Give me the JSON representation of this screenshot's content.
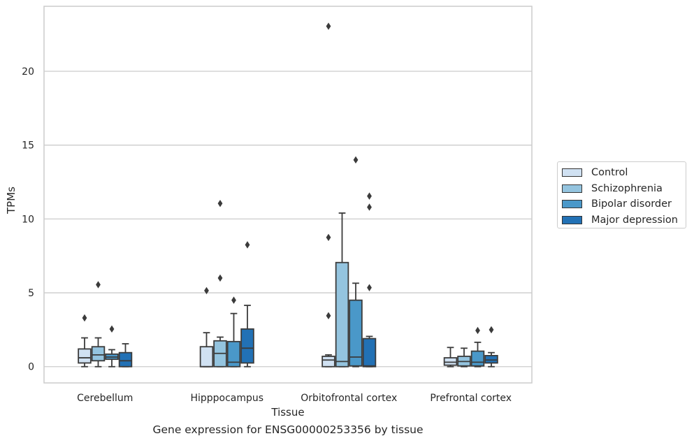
{
  "caption": "Gene expression for ENSG00000253356 by tissue",
  "chart_data": {
    "type": "box",
    "xlabel": "Tissue",
    "ylabel": "TPMs",
    "ylim": [
      -1.1,
      24.4
    ],
    "yticks": [
      0,
      5,
      10,
      15,
      20
    ],
    "grid": "horizontal",
    "legend_position": "right",
    "categories": [
      "Cerebellum",
      "Hipppocampus",
      "Orbitofrontal cortex",
      "Prefrontal cortex"
    ],
    "series": [
      {
        "name": "Control",
        "color": "#d0e1f2",
        "boxes": [
          {
            "whisker_low": 0.0,
            "q1": 0.25,
            "median": 0.6,
            "q3": 1.2,
            "whisker_high": 1.95,
            "outliers": [
              3.3
            ]
          },
          {
            "whisker_low": 0.0,
            "q1": 0.0,
            "median": 0.0,
            "q3": 1.35,
            "whisker_high": 2.3,
            "outliers": [
              5.15
            ]
          },
          {
            "whisker_low": 0.0,
            "q1": 0.0,
            "median": 0.45,
            "q3": 0.7,
            "whisker_high": 0.8,
            "outliers": [
              3.45,
              8.75,
              23.05
            ]
          },
          {
            "whisker_low": 0.0,
            "q1": 0.1,
            "median": 0.3,
            "q3": 0.6,
            "whisker_high": 1.3,
            "outliers": []
          }
        ]
      },
      {
        "name": "Schizophrenia",
        "color": "#94c4df",
        "boxes": [
          {
            "whisker_low": 0.0,
            "q1": 0.4,
            "median": 0.8,
            "q3": 1.35,
            "whisker_high": 1.95,
            "outliers": [
              5.55
            ]
          },
          {
            "whisker_low": 0.0,
            "q1": 0.0,
            "median": 0.9,
            "q3": 1.75,
            "whisker_high": 2.0,
            "outliers": [
              6.0,
              11.05
            ]
          },
          {
            "whisker_low": 0.0,
            "q1": 0.0,
            "median": 0.35,
            "q3": 7.05,
            "whisker_high": 10.4,
            "outliers": []
          },
          {
            "whisker_low": 0.0,
            "q1": 0.05,
            "median": 0.35,
            "q3": 0.7,
            "whisker_high": 1.25,
            "outliers": []
          }
        ]
      },
      {
        "name": "Bipolar disorder",
        "color": "#4a98c9",
        "boxes": [
          {
            "whisker_low": 0.0,
            "q1": 0.5,
            "median": 0.65,
            "q3": 0.85,
            "whisker_high": 1.15,
            "outliers": [
              2.55
            ]
          },
          {
            "whisker_low": 0.0,
            "q1": 0.0,
            "median": 0.3,
            "q3": 1.7,
            "whisker_high": 3.6,
            "outliers": [
              4.5
            ]
          },
          {
            "whisker_low": 0.0,
            "q1": 0.05,
            "median": 0.65,
            "q3": 4.5,
            "whisker_high": 5.65,
            "outliers": [
              14.0
            ]
          },
          {
            "whisker_low": 0.0,
            "q1": 0.05,
            "median": 0.3,
            "q3": 1.05,
            "whisker_high": 1.65,
            "outliers": [
              2.45
            ]
          }
        ]
      },
      {
        "name": "Major depression",
        "color": "#2271b5",
        "boxes": [
          {
            "whisker_low": 0.0,
            "q1": 0.0,
            "median": 0.4,
            "q3": 0.95,
            "whisker_high": 1.55,
            "outliers": []
          },
          {
            "whisker_low": 0.0,
            "q1": 0.25,
            "median": 1.25,
            "q3": 2.55,
            "whisker_high": 4.15,
            "outliers": [
              8.25
            ]
          },
          {
            "whisker_low": 0.0,
            "q1": 0.0,
            "median": 0.05,
            "q3": 1.9,
            "whisker_high": 2.05,
            "outliers": [
              5.35,
              10.8,
              11.55
            ]
          },
          {
            "whisker_low": 0.0,
            "q1": 0.25,
            "median": 0.45,
            "q3": 0.75,
            "whisker_high": 0.95,
            "outliers": [
              2.5
            ]
          }
        ]
      }
    ]
  }
}
